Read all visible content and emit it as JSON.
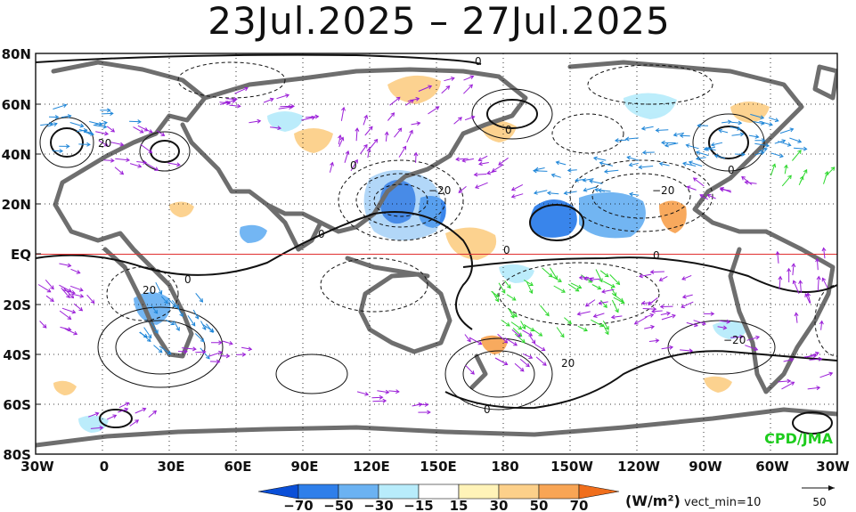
{
  "title": "23Jul.2025  –  27Jul.2025",
  "credit": "CPD/JMA",
  "latitude_labels": [
    "80N",
    "60N",
    "40N",
    "20N",
    "EQ",
    "20S",
    "40S",
    "60S",
    "80S"
  ],
  "longitude_labels": [
    "30W",
    "0",
    "30E",
    "60E",
    "90E",
    "120E",
    "150E",
    "180",
    "150W",
    "120W",
    "90W",
    "60W",
    "30W"
  ],
  "colorbar": {
    "labels": [
      "−70",
      "−50",
      "−30",
      "−15",
      "15",
      "30",
      "50",
      "70"
    ],
    "colors": [
      "#0a4fd8",
      "#2f7fea",
      "#6bb2f2",
      "#b8ecfb",
      "#ffffff",
      "#fff3b8",
      "#fcd08a",
      "#f8a555",
      "#f06e1c"
    ],
    "unit": "(W/m²)",
    "vect_min": "vect_min=10"
  },
  "reference_vector": {
    "value": "50"
  },
  "contour_labels": [
    "0",
    "0",
    "0",
    "0",
    "0",
    "0",
    "0",
    "0",
    "0",
    "−20",
    "−20",
    "20",
    "20",
    "−20",
    "20"
  ],
  "map_colors": {
    "land": "#6e6e6e",
    "vector_primary": "#9b1fd8",
    "vector_strong": "#1f86d8",
    "vector_strongest": "#2ed82e",
    "equator": "#e03030"
  }
}
